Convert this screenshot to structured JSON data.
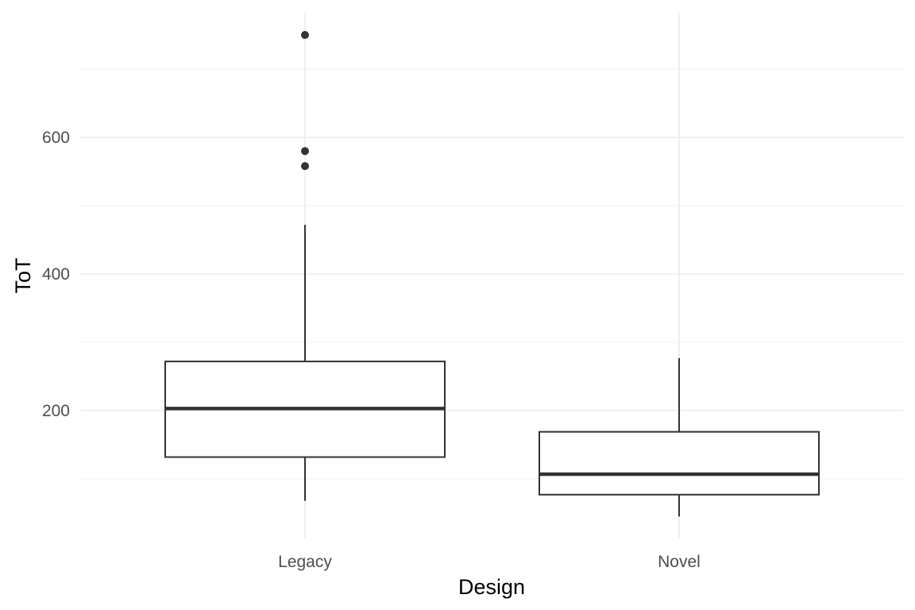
{
  "chart_data": {
    "type": "boxplot",
    "title": "",
    "xlabel": "Design",
    "ylabel": "ToT",
    "categories": [
      "Legacy",
      "Novel"
    ],
    "ylim": [
      15,
      765
    ],
    "y_ticks": [
      200,
      400,
      600
    ],
    "y_tick_labels": [
      "200",
      "400",
      "600"
    ],
    "grid": true,
    "boxes": [
      {
        "category": "Legacy",
        "lower_whisker": 68,
        "q1": 132,
        "median": 203,
        "q3": 272,
        "upper_whisker": 472,
        "outliers": [
          558,
          580,
          750
        ]
      },
      {
        "category": "Novel",
        "lower_whisker": 45,
        "q1": 77,
        "median": 107,
        "q3": 169,
        "upper_whisker": 277,
        "outliers": []
      }
    ],
    "colors": {
      "box_stroke": "#333333",
      "box_fill": "#ffffff",
      "grid_major": "#ebebeb",
      "grid_minor": "#f2f2f2",
      "tick_text": "#4d4d4d",
      "title_text": "#000000"
    }
  }
}
